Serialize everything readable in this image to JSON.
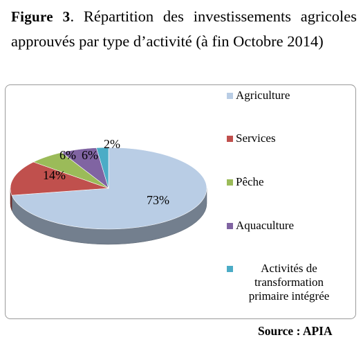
{
  "caption": {
    "label": "Figure 3",
    "text": ". Répartition des investissements agricoles approuvés par type  d’activité (à fin Octobre 2014)"
  },
  "source": "Source : APIA",
  "chart_data": {
    "type": "pie",
    "style": "3d",
    "title": "",
    "labels": [
      "Agriculture",
      "Services",
      "Pêche",
      "Aquaculture",
      "Activités de transformation primaire intégrée"
    ],
    "values": [
      73,
      14,
      6,
      6,
      2
    ],
    "value_labels": [
      "73%",
      "14%",
      "6%",
      "6%",
      "2%"
    ],
    "colors": [
      "#b9cde5",
      "#c0504d",
      "#9bbb59",
      "#8064a2",
      "#4bacc6"
    ],
    "legend_position": "right"
  }
}
